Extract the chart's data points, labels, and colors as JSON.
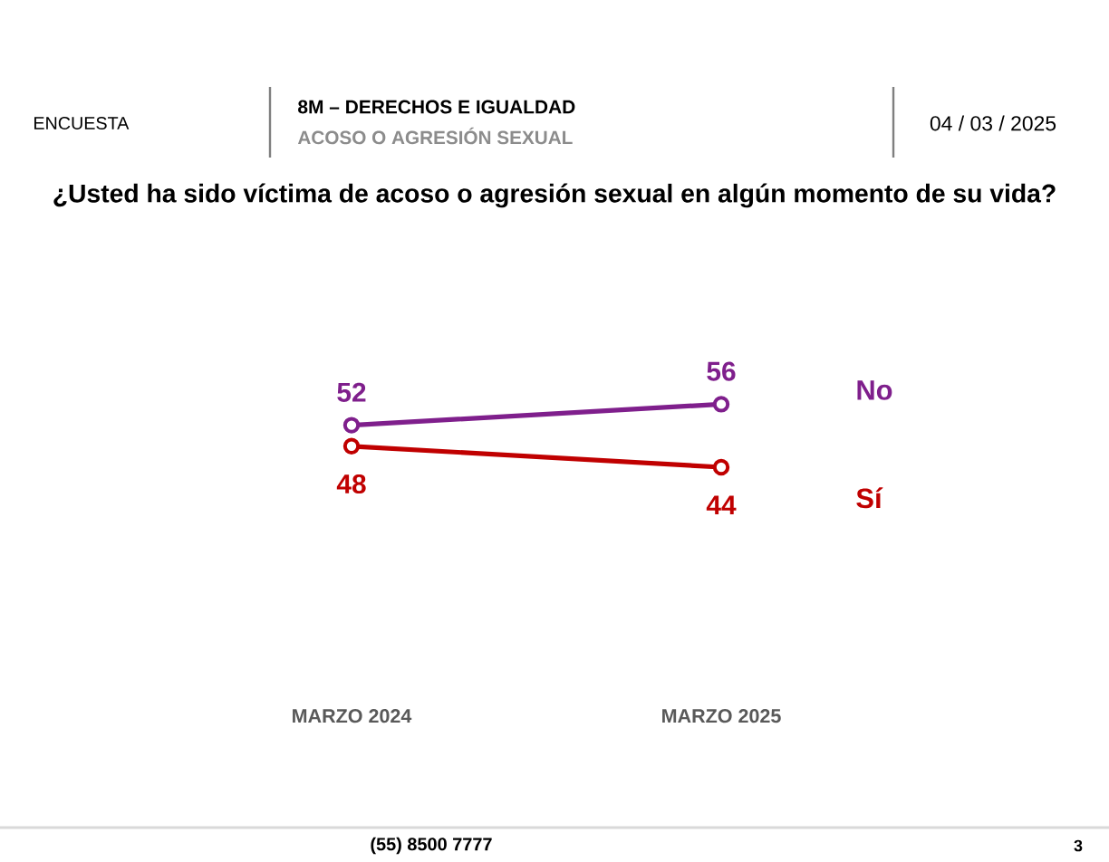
{
  "chart_data": {
    "type": "line",
    "title": "¿Usted ha sido víctima de acoso o agresión sexual en algún momento de su vida?",
    "categories": [
      "MARZO 2024",
      "MARZO 2025"
    ],
    "series": [
      {
        "name": "No",
        "color": "#7f1f8c",
        "values": [
          52,
          56
        ]
      },
      {
        "name": "Sí",
        "color": "#c00000",
        "values": [
          48,
          44
        ]
      }
    ],
    "tick_labels": "x",
    "data_labels": true,
    "legend": false,
    "grid": false,
    "marker": "circle",
    "line_style": "solid",
    "annotations": [
      "ENCUESTA",
      "8M – DERECHOS E IGUALDAD",
      "ACOSO O AGRESIÓN SEXUAL",
      "04 / 03 / 2025",
      "(55) 8500 7777",
      "3"
    ]
  }
}
